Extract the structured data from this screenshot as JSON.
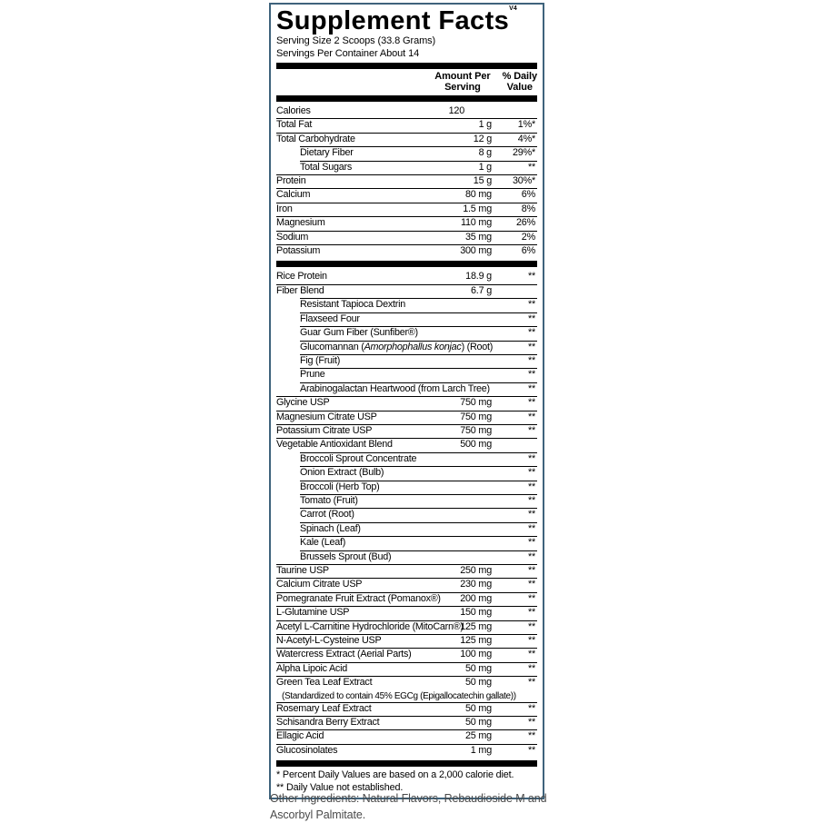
{
  "label": {
    "title": "Supplement Facts",
    "title_superscript": "V4",
    "serving_size": "Serving Size 2 Scoops (33.8 Grams)",
    "servings_per_container": "Servings Per Container About 14",
    "columns": {
      "amount_line1": "Amount Per",
      "amount_line2": "Serving",
      "dv_line1": "% Daily",
      "dv_line2": "Value"
    },
    "rows": [
      {
        "name": "Calories",
        "indent": 0,
        "amount": "120",
        "dv": "",
        "amount_shift": true
      },
      {
        "name": "Total Fat",
        "indent": 0,
        "amount": "1 g",
        "dv": "1%*"
      },
      {
        "name": "Total Carbohydrate",
        "indent": 0,
        "amount": "12 g",
        "dv": "4%*"
      },
      {
        "name": "Dietary Fiber",
        "indent": 1,
        "amount": "8 g",
        "dv": "29%*"
      },
      {
        "name": "Total Sugars",
        "indent": 1,
        "amount": "1 g",
        "dv": "**"
      },
      {
        "name": "Protein",
        "indent": 0,
        "amount": "15 g",
        "dv": "30%*"
      },
      {
        "name": "Calcium",
        "indent": 0,
        "amount": "80 mg",
        "dv": "6%"
      },
      {
        "name": "Iron",
        "indent": 0,
        "amount": "1.5 mg",
        "dv": "8%"
      },
      {
        "name": "Magnesium",
        "indent": 0,
        "amount": "110 mg",
        "dv": "26%"
      },
      {
        "name": "Sodium",
        "indent": 0,
        "amount": "35 mg",
        "dv": "2%"
      },
      {
        "name": "Potassium",
        "indent": 0,
        "amount": "300 mg",
        "dv": "6%"
      },
      {
        "type": "bar"
      },
      {
        "name": "Rice Protein",
        "indent": 0,
        "amount": "18.9 g",
        "dv": "**"
      },
      {
        "name": "Fiber Blend",
        "indent": 0,
        "amount": "6.7 g",
        "dv": ""
      },
      {
        "name": "Resistant Tapioca Dextrin",
        "indent": 1,
        "amount": "",
        "dv": "**"
      },
      {
        "name": "Flaxseed Four",
        "indent": 1,
        "amount": "",
        "dv": "**"
      },
      {
        "name": "Guar Gum Fiber (Sunfiber®)",
        "indent": 1,
        "amount": "",
        "dv": "**"
      },
      {
        "name": "Glucomannan (*Amorphophallus konjac*) (Root)",
        "indent": 1,
        "amount": "",
        "dv": "**"
      },
      {
        "name": "Fig (Fruit)",
        "indent": 1,
        "amount": "",
        "dv": "**"
      },
      {
        "name": "Prune",
        "indent": 1,
        "amount": "",
        "dv": "**"
      },
      {
        "name": "Arabinogalactan Heartwood (from Larch Tree)",
        "indent": 1,
        "amount": "",
        "dv": "**"
      },
      {
        "name": "Glycine USP",
        "indent": 0,
        "amount": "750 mg",
        "dv": "**"
      },
      {
        "name": "Magnesium Citrate USP",
        "indent": 0,
        "amount": "750 mg",
        "dv": "**"
      },
      {
        "name": "Potassium Citrate USP",
        "indent": 0,
        "amount": "750 mg",
        "dv": "**"
      },
      {
        "name": "Vegetable Antioxidant Blend",
        "indent": 0,
        "amount": "500 mg",
        "dv": ""
      },
      {
        "name": "Broccoli Sprout Concentrate",
        "indent": 1,
        "amount": "",
        "dv": "**"
      },
      {
        "name": "Onion Extract (Bulb)",
        "indent": 1,
        "amount": "",
        "dv": "**"
      },
      {
        "name": "Broccoli (Herb Top)",
        "indent": 1,
        "amount": "",
        "dv": "**"
      },
      {
        "name": "Tomato (Fruit)",
        "indent": 1,
        "amount": "",
        "dv": "**"
      },
      {
        "name": "Carrot (Root)",
        "indent": 1,
        "amount": "",
        "dv": "**"
      },
      {
        "name": "Spinach (Leaf)",
        "indent": 1,
        "amount": "",
        "dv": "**"
      },
      {
        "name": "Kale (Leaf)",
        "indent": 1,
        "amount": "",
        "dv": "**"
      },
      {
        "name": "Brussels Sprout (Bud)",
        "indent": 1,
        "amount": "",
        "dv": "**"
      },
      {
        "name": "Taurine USP",
        "indent": 0,
        "amount": "250 mg",
        "dv": "**"
      },
      {
        "name": "Calcium Citrate USP",
        "indent": 0,
        "amount": "230 mg",
        "dv": "**"
      },
      {
        "name": "Pomegranate Fruit Extract (Pomanox®)",
        "indent": 0,
        "amount": "200 mg",
        "dv": "**"
      },
      {
        "name": "L-Glutamine USP",
        "indent": 0,
        "amount": "150 mg",
        "dv": "**"
      },
      {
        "name": "Acetyl L-Carnitine Hydrochloride (MitoCarn®)",
        "indent": 0,
        "amount": "125 mg",
        "dv": "**"
      },
      {
        "name": "N-Acetyl-L-Cysteine USP",
        "indent": 0,
        "amount": "125 mg",
        "dv": "**"
      },
      {
        "name": "Watercress Extract (Aerial Parts)",
        "indent": 0,
        "amount": "100 mg",
        "dv": "**"
      },
      {
        "name": "Alpha Lipoic Acid",
        "indent": 0,
        "amount": "50 mg",
        "dv": "**"
      },
      {
        "name": "Green Tea Leaf Extract",
        "indent": 0,
        "amount": "50 mg",
        "dv": "**",
        "note": "(Standardized to contain 45% EGCg (Epigallocatechin gallate))"
      },
      {
        "name": "Rosemary Leaf Extract",
        "indent": 0,
        "amount": "50 mg",
        "dv": "**"
      },
      {
        "name": "Schisandra Berry Extract",
        "indent": 0,
        "amount": "50 mg",
        "dv": "**"
      },
      {
        "name": "Ellagic Acid",
        "indent": 0,
        "amount": "25 mg",
        "dv": "**"
      },
      {
        "name": "Glucosinolates",
        "indent": 0,
        "amount": "1 mg",
        "dv": "**"
      },
      {
        "type": "bar"
      }
    ],
    "footnotes": [
      "* Percent Daily Values are based on a 2,000 calorie diet.",
      "** Daily Value not established."
    ]
  },
  "other_ingredients": "Other Ingredients: Natural Flavors, Rebaudioside M and Ascorbyl Palmitate.",
  "colors": {
    "panel_border": "#3f637c",
    "text": "#000000",
    "other_ingredients_text": "#4a4a4a"
  }
}
